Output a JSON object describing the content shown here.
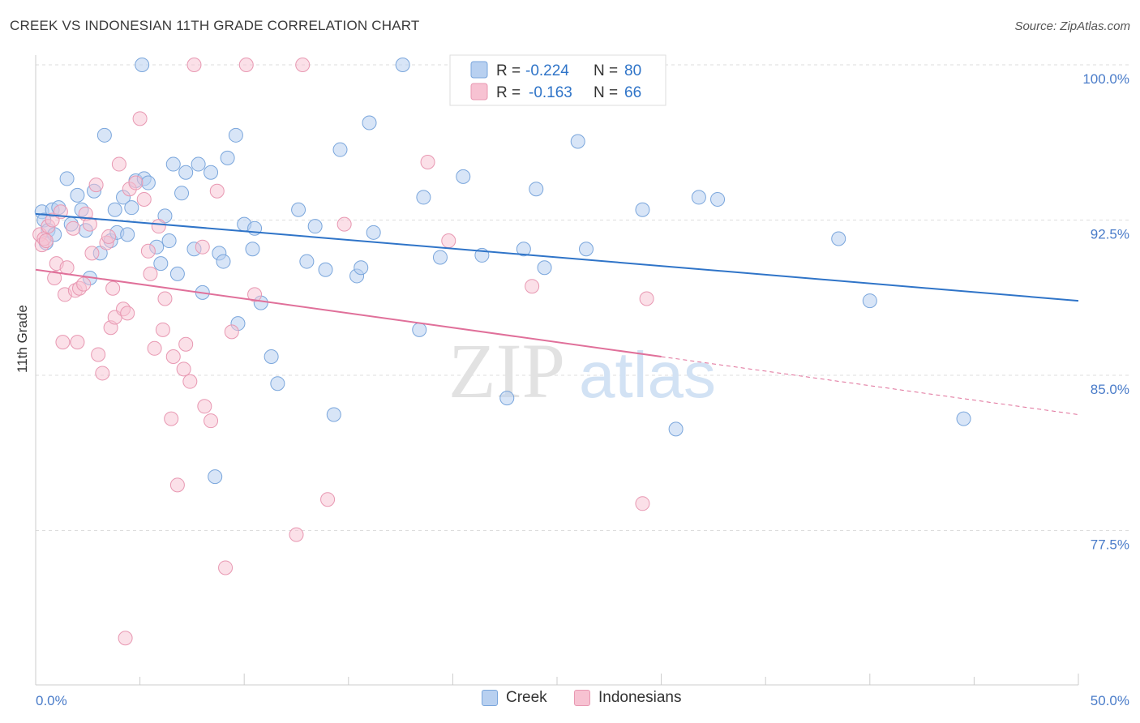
{
  "header": {
    "title": "CREEK VS INDONESIAN 11TH GRADE CORRELATION CHART",
    "source": "Source: ZipAtlas.com"
  },
  "watermark": {
    "zip": "ZIP",
    "atlas": "atlas"
  },
  "colors": {
    "creek_fill": "#b8d0f0",
    "creek_stroke": "#7aa6dc",
    "creek_line": "#2f74c8",
    "indo_fill": "#f7c2d2",
    "indo_stroke": "#e898b2",
    "indo_line": "#e0709a",
    "axis_text": "#4a7cc9",
    "grid": "#dddddd"
  },
  "legend": {
    "rows": [
      {
        "r_label": "R =",
        "r_value": "-0.224",
        "n_label": "N =",
        "n_value": "80"
      },
      {
        "r_label": "R =",
        "r_value": "-0.163",
        "n_label": "N =",
        "n_value": "66"
      }
    ]
  },
  "bottom_legend": {
    "creek": "Creek",
    "indonesians": "Indonesians"
  },
  "chart_data": {
    "type": "scatter",
    "title": "CREEK VS INDONESIAN 11TH GRADE CORRELATION CHART",
    "xlabel": "",
    "ylabel": "11th Grade",
    "xlim": [
      0,
      50
    ],
    "ylim": [
      71.5,
      100.6
    ],
    "x_tick_labels": [
      "0.0%",
      "50.0%"
    ],
    "y_ticks": [
      77.5,
      85.0,
      92.5,
      100.0
    ],
    "y_tick_labels": [
      "77.5%",
      "85.0%",
      "92.5%",
      "100.0%"
    ],
    "grid": "horizontal dashed",
    "legend_position": "top-center",
    "series": [
      {
        "name": "Creek",
        "R": -0.224,
        "N": 80,
        "trend": {
          "x": [
            0,
            50
          ],
          "y": [
            92.8,
            88.6
          ],
          "style": "solid"
        },
        "points": [
          [
            0.3,
            92.9
          ],
          [
            0.4,
            92.5
          ],
          [
            0.5,
            91.4
          ],
          [
            0.6,
            92.0
          ],
          [
            0.8,
            93.0
          ],
          [
            0.9,
            91.8
          ],
          [
            1.1,
            93.1
          ],
          [
            1.5,
            94.5
          ],
          [
            1.7,
            92.3
          ],
          [
            2.0,
            93.7
          ],
          [
            2.2,
            93.0
          ],
          [
            2.4,
            92.0
          ],
          [
            2.6,
            89.7
          ],
          [
            2.8,
            93.9
          ],
          [
            3.1,
            90.9
          ],
          [
            3.3,
            96.6
          ],
          [
            3.6,
            91.5
          ],
          [
            3.8,
            93.0
          ],
          [
            3.9,
            91.9
          ],
          [
            4.2,
            93.6
          ],
          [
            4.4,
            91.8
          ],
          [
            4.6,
            93.1
          ],
          [
            4.8,
            94.4
          ],
          [
            5.1,
            100.0
          ],
          [
            5.2,
            94.5
          ],
          [
            5.4,
            94.3
          ],
          [
            5.8,
            91.2
          ],
          [
            6.0,
            90.4
          ],
          [
            6.2,
            92.7
          ],
          [
            6.4,
            91.5
          ],
          [
            6.6,
            95.2
          ],
          [
            6.8,
            89.9
          ],
          [
            7.0,
            93.8
          ],
          [
            7.2,
            94.8
          ],
          [
            7.6,
            91.1
          ],
          [
            7.8,
            95.2
          ],
          [
            8.0,
            89.0
          ],
          [
            8.4,
            94.8
          ],
          [
            8.6,
            80.1
          ],
          [
            8.8,
            90.9
          ],
          [
            9.0,
            90.5
          ],
          [
            9.2,
            95.5
          ],
          [
            9.6,
            96.6
          ],
          [
            9.7,
            87.5
          ],
          [
            10.0,
            92.3
          ],
          [
            10.4,
            91.1
          ],
          [
            10.5,
            92.1
          ],
          [
            10.8,
            88.5
          ],
          [
            11.3,
            85.9
          ],
          [
            11.6,
            84.6
          ],
          [
            12.6,
            93.0
          ],
          [
            13.0,
            90.5
          ],
          [
            13.4,
            92.2
          ],
          [
            13.9,
            90.1
          ],
          [
            14.3,
            83.1
          ],
          [
            14.6,
            95.9
          ],
          [
            15.4,
            89.8
          ],
          [
            15.6,
            90.2
          ],
          [
            16.0,
            97.2
          ],
          [
            16.2,
            91.9
          ],
          [
            17.6,
            100.0
          ],
          [
            18.4,
            87.2
          ],
          [
            18.6,
            93.6
          ],
          [
            19.4,
            90.7
          ],
          [
            20.5,
            94.6
          ],
          [
            21.4,
            90.8
          ],
          [
            22.6,
            83.9
          ],
          [
            22.8,
            100.0
          ],
          [
            23.4,
            91.1
          ],
          [
            24.0,
            94.0
          ],
          [
            24.4,
            90.2
          ],
          [
            26.0,
            96.3
          ],
          [
            26.4,
            91.1
          ],
          [
            29.1,
            93.0
          ],
          [
            30.7,
            82.4
          ],
          [
            31.8,
            93.6
          ],
          [
            32.7,
            93.5
          ],
          [
            38.5,
            91.6
          ],
          [
            40.0,
            88.6
          ],
          [
            44.5,
            82.9
          ]
        ]
      },
      {
        "name": "Indonesians",
        "R": -0.163,
        "N": 66,
        "trend": {
          "x": [
            0,
            30
          ],
          "y": [
            90.1,
            85.9
          ],
          "x_dashed_end": 50,
          "y_dashed_end": 83.1,
          "style": "solid-then-dashed"
        },
        "points": [
          [
            0.2,
            91.8
          ],
          [
            0.3,
            91.3
          ],
          [
            0.4,
            91.6
          ],
          [
            0.6,
            92.2
          ],
          [
            0.8,
            92.5
          ],
          [
            0.9,
            89.7
          ],
          [
            1.0,
            90.4
          ],
          [
            1.3,
            86.6
          ],
          [
            1.4,
            88.9
          ],
          [
            1.5,
            90.2
          ],
          [
            1.8,
            92.1
          ],
          [
            1.9,
            89.1
          ],
          [
            2.0,
            86.6
          ],
          [
            2.1,
            89.2
          ],
          [
            2.3,
            89.4
          ],
          [
            2.4,
            92.8
          ],
          [
            2.6,
            92.3
          ],
          [
            2.7,
            90.9
          ],
          [
            2.9,
            94.2
          ],
          [
            3.0,
            86.0
          ],
          [
            3.2,
            85.1
          ],
          [
            3.4,
            91.4
          ],
          [
            3.5,
            91.7
          ],
          [
            3.6,
            87.3
          ],
          [
            3.7,
            89.2
          ],
          [
            3.8,
            87.8
          ],
          [
            4.0,
            95.2
          ],
          [
            4.2,
            88.2
          ],
          [
            4.4,
            88.0
          ],
          [
            4.5,
            94.0
          ],
          [
            4.8,
            94.3
          ],
          [
            5.0,
            97.4
          ],
          [
            5.2,
            93.5
          ],
          [
            5.4,
            91.0
          ],
          [
            5.5,
            89.9
          ],
          [
            5.7,
            86.3
          ],
          [
            5.9,
            92.2
          ],
          [
            6.1,
            87.2
          ],
          [
            6.2,
            88.7
          ],
          [
            6.5,
            82.9
          ],
          [
            6.6,
            85.9
          ],
          [
            6.8,
            79.7
          ],
          [
            7.1,
            85.3
          ],
          [
            7.2,
            86.5
          ],
          [
            7.4,
            84.7
          ],
          [
            7.6,
            100.0
          ],
          [
            8.0,
            91.2
          ],
          [
            8.1,
            83.5
          ],
          [
            8.4,
            82.8
          ],
          [
            8.7,
            93.9
          ],
          [
            9.1,
            75.7
          ],
          [
            9.4,
            87.1
          ],
          [
            10.1,
            100.0
          ],
          [
            10.5,
            88.9
          ],
          [
            12.5,
            77.3
          ],
          [
            12.8,
            100.0
          ],
          [
            14.0,
            79.0
          ],
          [
            14.8,
            92.3
          ],
          [
            18.8,
            95.3
          ],
          [
            19.8,
            91.5
          ],
          [
            23.8,
            89.3
          ],
          [
            29.1,
            78.8
          ],
          [
            29.3,
            88.7
          ],
          [
            4.3,
            72.3
          ],
          [
            0.5,
            91.5
          ],
          [
            1.2,
            92.9
          ]
        ]
      }
    ]
  }
}
